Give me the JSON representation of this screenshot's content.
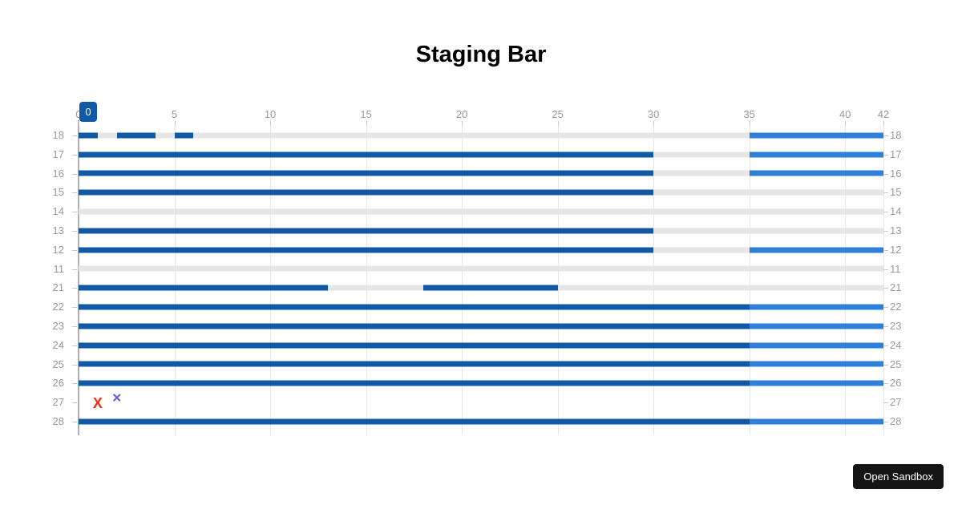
{
  "page": {
    "open_sandbox_label": "Open Sandbox"
  },
  "colors": {
    "primary": "#1158a6",
    "secondary": "#2e80d9",
    "track": "#e6e6e6",
    "grid": "#e6e6e6",
    "tick": "#c9c9c9",
    "axis_line": "#b0b0b0",
    "label": "#999999",
    "marker_red": "#f42a1c",
    "marker_purple": "#6a5ace"
  },
  "chart_data": {
    "type": "bar",
    "orientation": "horizontal",
    "title": "Staging Bar",
    "xlabel": "",
    "ylabel": "",
    "xlim": [
      0,
      42
    ],
    "x_ticks": [
      0,
      5,
      10,
      15,
      20,
      25,
      30,
      35,
      40,
      42
    ],
    "x_axis_position": "top",
    "y_axis_labels_position": "both",
    "grid": true,
    "legend": false,
    "badge": {
      "value": "0",
      "x": 0
    },
    "rows": [
      {
        "label": "18",
        "track": [
          0,
          42
        ],
        "segments": [
          {
            "from": 0,
            "to": 1,
            "kind": "primary"
          },
          {
            "from": 2,
            "to": 4,
            "kind": "primary"
          },
          {
            "from": 5,
            "to": 6,
            "kind": "primary"
          },
          {
            "from": 35,
            "to": 42,
            "kind": "secondary"
          }
        ],
        "markers": []
      },
      {
        "label": "17",
        "track": [
          0,
          42
        ],
        "segments": [
          {
            "from": 0,
            "to": 30,
            "kind": "primary"
          },
          {
            "from": 35,
            "to": 42,
            "kind": "secondary"
          }
        ],
        "markers": []
      },
      {
        "label": "16",
        "track": [
          0,
          42
        ],
        "segments": [
          {
            "from": 0,
            "to": 30,
            "kind": "primary"
          },
          {
            "from": 35,
            "to": 42,
            "kind": "secondary"
          }
        ],
        "markers": []
      },
      {
        "label": "15",
        "track": [
          0,
          42
        ],
        "segments": [
          {
            "from": 0,
            "to": 30,
            "kind": "primary"
          }
        ],
        "markers": []
      },
      {
        "label": "14",
        "track": [
          0,
          42
        ],
        "segments": [],
        "markers": []
      },
      {
        "label": "13",
        "track": [
          0,
          42
        ],
        "segments": [
          {
            "from": 0,
            "to": 30,
            "kind": "primary"
          }
        ],
        "markers": []
      },
      {
        "label": "12",
        "track": [
          0,
          42
        ],
        "segments": [
          {
            "from": 0,
            "to": 30,
            "kind": "primary"
          },
          {
            "from": 35,
            "to": 42,
            "kind": "secondary"
          }
        ],
        "markers": []
      },
      {
        "label": "11",
        "track": [
          0,
          42
        ],
        "segments": [],
        "markers": []
      },
      {
        "label": "21",
        "track": [
          0,
          42
        ],
        "segments": [
          {
            "from": 0,
            "to": 13,
            "kind": "primary"
          },
          {
            "from": 18,
            "to": 25,
            "kind": "primary"
          }
        ],
        "markers": []
      },
      {
        "label": "22",
        "track": [
          0,
          42
        ],
        "segments": [
          {
            "from": 0,
            "to": 35,
            "kind": "primary"
          },
          {
            "from": 35,
            "to": 42,
            "kind": "secondary"
          }
        ],
        "markers": []
      },
      {
        "label": "23",
        "track": [
          0,
          42
        ],
        "segments": [
          {
            "from": 0,
            "to": 35,
            "kind": "primary"
          },
          {
            "from": 35,
            "to": 42,
            "kind": "secondary"
          }
        ],
        "markers": []
      },
      {
        "label": "24",
        "track": [
          0,
          42
        ],
        "segments": [
          {
            "from": 0,
            "to": 35,
            "kind": "primary"
          },
          {
            "from": 35,
            "to": 42,
            "kind": "secondary"
          }
        ],
        "markers": []
      },
      {
        "label": "25",
        "track": [
          0,
          42
        ],
        "segments": [
          {
            "from": 0,
            "to": 35,
            "kind": "primary"
          },
          {
            "from": 35,
            "to": 42,
            "kind": "secondary"
          }
        ],
        "markers": []
      },
      {
        "label": "26",
        "track": [
          0,
          42
        ],
        "segments": [
          {
            "from": 0,
            "to": 35,
            "kind": "primary"
          },
          {
            "from": 35,
            "to": 42,
            "kind": "secondary"
          }
        ],
        "markers": []
      },
      {
        "label": "27",
        "track": null,
        "segments": [],
        "markers": [
          {
            "x": 1,
            "glyph": "X",
            "color_key": "marker_red",
            "size": 18,
            "dy": 1
          },
          {
            "x": 2,
            "glyph": "✕",
            "color_key": "marker_purple",
            "size": 15,
            "dy": -5
          }
        ]
      },
      {
        "label": "28",
        "track": [
          0,
          42
        ],
        "segments": [
          {
            "from": 0,
            "to": 35,
            "kind": "primary"
          },
          {
            "from": 35,
            "to": 42,
            "kind": "secondary"
          }
        ],
        "markers": []
      }
    ]
  }
}
